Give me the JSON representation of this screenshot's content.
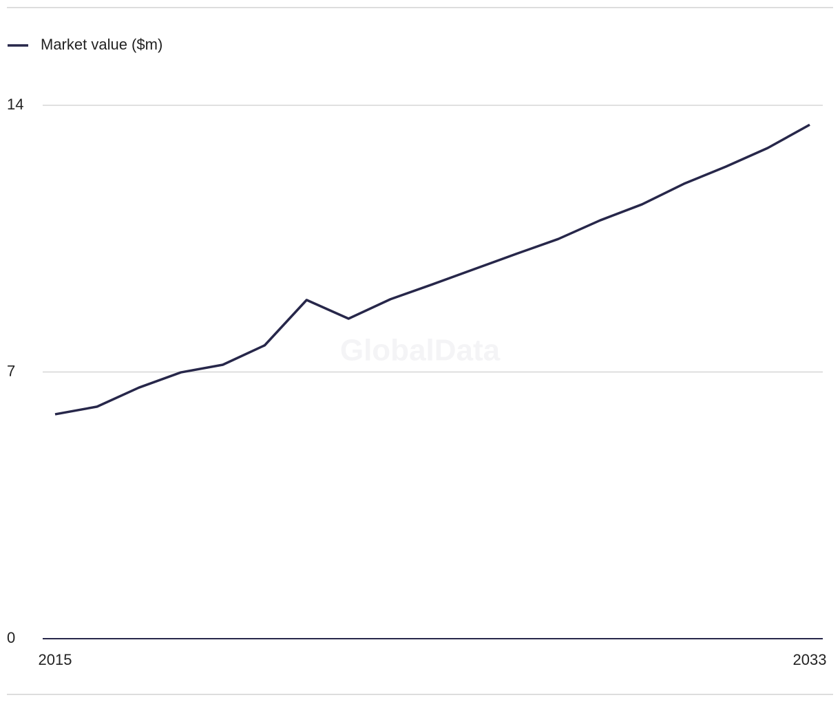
{
  "chart_data": {
    "type": "line",
    "legend": "top-left",
    "watermark": "GlobalData",
    "x": [
      2015,
      2016,
      2017,
      2018,
      2019,
      2020,
      2021,
      2022,
      2023,
      2024,
      2025,
      2026,
      2027,
      2028,
      2029,
      2030,
      2031,
      2032,
      2033
    ],
    "series": [
      {
        "name": "Market value ($m)",
        "color": "#27274a",
        "values": [
          5.89,
          6.09,
          6.59,
          6.99,
          7.19,
          7.7,
          8.89,
          8.4,
          8.91,
          9.3,
          9.7,
          10.1,
          10.49,
          10.98,
          11.4,
          11.94,
          12.39,
          12.88,
          13.49
        ]
      }
    ],
    "xlim": [
      2015,
      2033
    ],
    "xticks": [
      2015,
      2033
    ],
    "ylim": [
      0,
      14
    ],
    "yticks": [
      0,
      7,
      14
    ],
    "grid": true
  }
}
